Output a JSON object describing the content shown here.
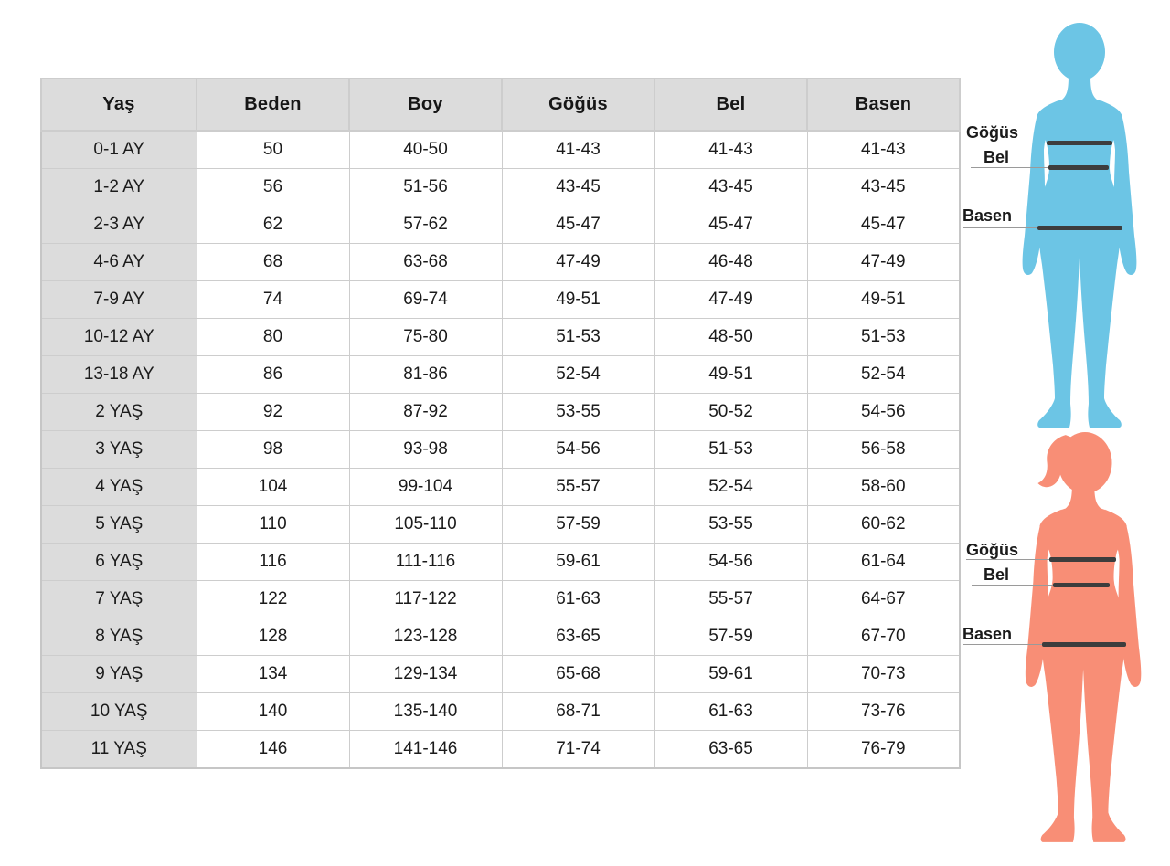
{
  "chart_data": {
    "type": "table",
    "columns": [
      "Yaş",
      "Beden",
      "Boy",
      "Göğüs",
      "Bel",
      "Basen"
    ],
    "rows": [
      [
        "0-1 AY",
        "50",
        "40-50",
        "41-43",
        "41-43",
        "41-43"
      ],
      [
        "1-2 AY",
        "56",
        "51-56",
        "43-45",
        "43-45",
        "43-45"
      ],
      [
        "2-3 AY",
        "62",
        "57-62",
        "45-47",
        "45-47",
        "45-47"
      ],
      [
        "4-6 AY",
        "68",
        "63-68",
        "47-49",
        "46-48",
        "47-49"
      ],
      [
        "7-9 AY",
        "74",
        "69-74",
        "49-51",
        "47-49",
        "49-51"
      ],
      [
        "10-12 AY",
        "80",
        "75-80",
        "51-53",
        "48-50",
        "51-53"
      ],
      [
        "13-18 AY",
        "86",
        "81-86",
        "52-54",
        "49-51",
        "52-54"
      ],
      [
        "2 YAŞ",
        "92",
        "87-92",
        "53-55",
        "50-52",
        "54-56"
      ],
      [
        "3 YAŞ",
        "98",
        "93-98",
        "54-56",
        "51-53",
        "56-58"
      ],
      [
        "4 YAŞ",
        "104",
        "99-104",
        "55-57",
        "52-54",
        "58-60"
      ],
      [
        "5 YAŞ",
        "110",
        "105-110",
        "57-59",
        "53-55",
        "60-62"
      ],
      [
        "6 YAŞ",
        "116",
        "111-116",
        "59-61",
        "54-56",
        "61-64"
      ],
      [
        "7 YAŞ",
        "122",
        "117-122",
        "61-63",
        "55-57",
        "64-67"
      ],
      [
        "8 YAŞ",
        "128",
        "123-128",
        "63-65",
        "57-59",
        "67-70"
      ],
      [
        "9 YAŞ",
        "134",
        "129-134",
        "65-68",
        "59-61",
        "70-73"
      ],
      [
        "10 YAŞ",
        "140",
        "135-140",
        "68-71",
        "61-63",
        "73-76"
      ],
      [
        "11 YAŞ",
        "146",
        "141-146",
        "71-74",
        "63-65",
        "76-79"
      ]
    ],
    "layout_hints": {
      "header_row": true,
      "first_column_is_label": true,
      "grid": true
    }
  },
  "figures": {
    "boy": {
      "color": "#6cc5e5",
      "chest_label": "Göğüs",
      "waist_label": "Bel",
      "hip_label": "Basen"
    },
    "girl": {
      "color": "#f88e76",
      "chest_label": "Göğüs",
      "waist_label": "Bel",
      "hip_label": "Basen"
    }
  },
  "style": {
    "header_bg": "#dcdcdc",
    "border_color": "#cdcdcd",
    "text_color": "#1b1b1b",
    "measure_bar_color": "#3d3d3d",
    "guide_line_color": "#9a9a9a"
  }
}
